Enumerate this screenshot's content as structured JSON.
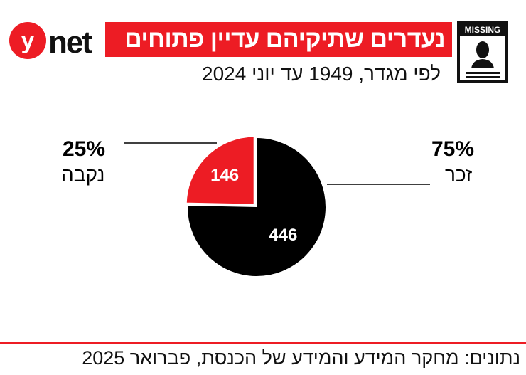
{
  "header": {
    "logo_text": "ynet",
    "title": "נעדרים שתיקיהם עדיין פתוחים",
    "subtitle": "לפי מגדר, 1949 עד יוני 2024",
    "badge_text": "MISSING",
    "brand_color": "#ed1c24"
  },
  "chart_data": {
    "type": "pie",
    "title": "נעדרים שתיקיהם עדיין פתוחים",
    "subtitle": "לפי מגדר, 1949 עד יוני 2024",
    "slices": [
      {
        "label": "זכר",
        "value": 446,
        "percent": "75%",
        "color": "#000000"
      },
      {
        "label": "נקבה",
        "value": 146,
        "percent": "25%",
        "color": "#ed1c24",
        "exploded": true
      }
    ]
  },
  "footer": {
    "source": "נתונים: מחקר המידע והמידע של הכנסת, פברואר 2025"
  }
}
